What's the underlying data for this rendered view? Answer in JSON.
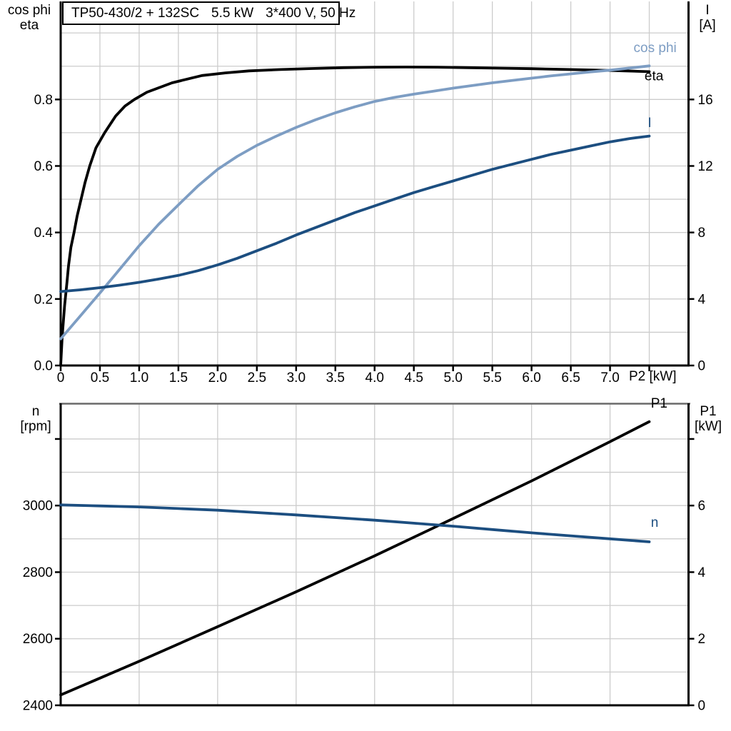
{
  "colors": {
    "black": "#000000",
    "light_blue": "#7d9dc3",
    "dark_blue": "#1c4e80",
    "grid": "#cccccc",
    "top_border_gray": "#6a6a6a"
  },
  "chart_data": [
    {
      "type": "line",
      "title": "TP50-430/2 + 132SC   5.5 kW   3*400 V, 50 Hz",
      "title_parts": [
        "TP50-430/2 + 132SC",
        "5.5 kW",
        "3*400 V, 50 Hz"
      ],
      "x_axis": {
        "label": "P2 [kW]",
        "range": [
          0,
          8
        ],
        "ticks": [
          0,
          0.5,
          1,
          1.5,
          2,
          2.5,
          3,
          3.5,
          4,
          4.5,
          5,
          5.5,
          6,
          6.5,
          7
        ],
        "tick_labels": [
          "0",
          "0.5",
          "1.0",
          "1.5",
          "2.0",
          "2.5",
          "3.0",
          "3.5",
          "4.0",
          "4.5",
          "5.0",
          "5.5",
          "6.0",
          "6.5",
          "7.0"
        ],
        "minor_ticks": [
          7.5
        ]
      },
      "y_left": {
        "label_lines": [
          "cos phi",
          "eta"
        ],
        "range": [
          0,
          1.01
        ],
        "ticks": [
          0,
          0.2,
          0.4,
          0.6,
          0.8
        ],
        "tick_labels": [
          "0.0",
          "0.2",
          "0.4",
          "0.6",
          "0.8"
        ],
        "minor_ticks": []
      },
      "y_right": {
        "label_lines": [
          "I",
          "[A]"
        ],
        "range": [
          0,
          20.2
        ],
        "ticks": [
          0,
          4,
          8,
          12,
          16
        ],
        "tick_labels": [
          "0",
          "4",
          "8",
          "12",
          "16"
        ],
        "minor_ticks": []
      },
      "grid": {
        "v_values": [
          0.5,
          1,
          1.5,
          2,
          2.5,
          3,
          3.5,
          4,
          4.5,
          5,
          5.5,
          6,
          6.5,
          7,
          7.5
        ],
        "h_values": [
          0.1,
          0.2,
          0.3,
          0.4,
          0.5,
          0.6,
          0.7,
          0.8,
          0.9,
          1.0
        ]
      },
      "top_border": false,
      "series": [
        {
          "name": "eta",
          "label": "eta",
          "axis": "left",
          "color": "#000000",
          "label_pos": {
            "x": 7.44,
            "y": 0.858
          },
          "points": [
            [
              0,
              0
            ],
            [
              0.02,
              0.09
            ],
            [
              0.05,
              0.18
            ],
            [
              0.08,
              0.25
            ],
            [
              0.1,
              0.3
            ],
            [
              0.13,
              0.355
            ],
            [
              0.17,
              0.4
            ],
            [
              0.21,
              0.45
            ],
            [
              0.26,
              0.5
            ],
            [
              0.31,
              0.55
            ],
            [
              0.37,
              0.6
            ],
            [
              0.45,
              0.655
            ],
            [
              0.56,
              0.7
            ],
            [
              0.7,
              0.75
            ],
            [
              0.82,
              0.78
            ],
            [
              0.94,
              0.8
            ],
            [
              1.1,
              0.822
            ],
            [
              1.42,
              0.85
            ],
            [
              1.8,
              0.872
            ],
            [
              2.1,
              0.88
            ],
            [
              2.4,
              0.886
            ],
            [
              2.8,
              0.89
            ],
            [
              3.2,
              0.893
            ],
            [
              3.6,
              0.8955
            ],
            [
              4,
              0.897
            ],
            [
              4.4,
              0.8975
            ],
            [
              4.8,
              0.897
            ],
            [
              5.2,
              0.8955
            ],
            [
              5.6,
              0.894
            ],
            [
              6,
              0.8925
            ],
            [
              6.4,
              0.8905
            ],
            [
              6.8,
              0.8885
            ],
            [
              7.2,
              0.886
            ],
            [
              7.5,
              0.8835
            ]
          ]
        },
        {
          "name": "cos phi",
          "label": "cos phi",
          "axis": "left",
          "color": "#7d9dc3",
          "label_pos": {
            "x": 7.3,
            "y": 0.942
          },
          "points": [
            [
              0,
              0.08
            ],
            [
              0.25,
              0.149
            ],
            [
              0.5,
              0.218
            ],
            [
              0.75,
              0.289
            ],
            [
              1,
              0.36
            ],
            [
              1.25,
              0.425
            ],
            [
              1.5,
              0.483
            ],
            [
              1.75,
              0.54
            ],
            [
              2,
              0.59
            ],
            [
              2.25,
              0.629
            ],
            [
              2.5,
              0.662
            ],
            [
              2.75,
              0.69
            ],
            [
              3,
              0.716
            ],
            [
              3.25,
              0.739
            ],
            [
              3.5,
              0.76
            ],
            [
              3.75,
              0.778
            ],
            [
              4,
              0.794
            ],
            [
              4.25,
              0.806
            ],
            [
              4.5,
              0.816
            ],
            [
              4.75,
              0.825
            ],
            [
              5,
              0.834
            ],
            [
              5.25,
              0.842
            ],
            [
              5.5,
              0.85
            ],
            [
              5.75,
              0.857
            ],
            [
              6,
              0.864
            ],
            [
              6.25,
              0.871
            ],
            [
              6.5,
              0.877
            ],
            [
              6.75,
              0.883
            ],
            [
              7,
              0.888
            ],
            [
              7.25,
              0.8945
            ],
            [
              7.5,
              0.901
            ]
          ]
        },
        {
          "name": "I",
          "label": "I",
          "axis": "right",
          "color": "#1c4e80",
          "label_pos": {
            "x": 7.48,
            "y": 14.35
          },
          "points": [
            [
              0,
              4.45
            ],
            [
              0.25,
              4.55
            ],
            [
              0.5,
              4.68
            ],
            [
              0.75,
              4.83
            ],
            [
              1,
              5
            ],
            [
              1.25,
              5.2
            ],
            [
              1.5,
              5.42
            ],
            [
              1.75,
              5.7
            ],
            [
              2,
              6.05
            ],
            [
              2.25,
              6.45
            ],
            [
              2.5,
              6.9
            ],
            [
              2.75,
              7.35
            ],
            [
              3,
              7.85
            ],
            [
              3.25,
              8.3
            ],
            [
              3.5,
              8.75
            ],
            [
              3.75,
              9.2
            ],
            [
              4,
              9.6
            ],
            [
              4.25,
              10
            ],
            [
              4.5,
              10.4
            ],
            [
              4.75,
              10.75
            ],
            [
              5,
              11.1
            ],
            [
              5.25,
              11.45
            ],
            [
              5.5,
              11.8
            ],
            [
              5.75,
              12.1
            ],
            [
              6,
              12.4
            ],
            [
              6.25,
              12.7
            ],
            [
              6.5,
              12.95
            ],
            [
              6.75,
              13.2
            ],
            [
              7,
              13.45
            ],
            [
              7.25,
              13.65
            ],
            [
              7.5,
              13.8
            ]
          ]
        }
      ]
    },
    {
      "type": "line",
      "title": "",
      "title_parts": [],
      "x_axis": {
        "label": "",
        "range": [
          0,
          8
        ],
        "ticks": [],
        "tick_labels": [],
        "minor_ticks": []
      },
      "y_left": {
        "label_lines": [
          "n",
          "[rpm]"
        ],
        "range": [
          2400,
          3306
        ],
        "ticks": [
          2400,
          2600,
          2800,
          3000
        ],
        "tick_labels": [
          "2400",
          "2600",
          "2800",
          "3000"
        ],
        "minor_ticks": [
          3200
        ]
      },
      "y_right": {
        "label_lines": [
          "P1",
          "[kW]"
        ],
        "range": [
          0,
          9.06
        ],
        "ticks": [
          0,
          2,
          4,
          6
        ],
        "tick_labels": [
          "0",
          "2",
          "4",
          "6"
        ],
        "minor_ticks": [
          8
        ]
      },
      "grid": {
        "v_values": [
          1,
          2,
          3,
          4,
          5,
          6,
          7
        ],
        "h_values": [
          2500,
          2600,
          2700,
          2800,
          2900,
          3000,
          3100,
          3200
        ]
      },
      "top_border": true,
      "series": [
        {
          "name": "P1",
          "label": "P1",
          "axis": "right",
          "color": "#000000",
          "label_pos": {
            "x": 7.52,
            "y": 8.94
          },
          "points": [
            [
              0,
              0.31
            ],
            [
              1,
              1.32
            ],
            [
              2,
              2.36
            ],
            [
              3,
              3.41
            ],
            [
              4,
              4.49
            ],
            [
              4.84,
              5.43
            ],
            [
              6,
              6.74
            ],
            [
              7,
              7.92
            ],
            [
              7.5,
              8.52
            ]
          ]
        },
        {
          "name": "n",
          "label": "n",
          "axis": "left",
          "color": "#1c4e80",
          "label_pos": {
            "x": 7.52,
            "y": 2936
          },
          "points": [
            [
              0,
              3002
            ],
            [
              0.5,
              2999
            ],
            [
              1,
              2996
            ],
            [
              1.5,
              2991
            ],
            [
              2,
              2986
            ],
            [
              2.5,
              2979
            ],
            [
              3,
              2972
            ],
            [
              3.5,
              2964
            ],
            [
              4,
              2956
            ],
            [
              4.5,
              2947
            ],
            [
              5,
              2938
            ],
            [
              5.5,
              2928
            ],
            [
              6,
              2918
            ],
            [
              6.5,
              2909
            ],
            [
              7,
              2900
            ],
            [
              7.5,
              2891
            ]
          ]
        }
      ]
    }
  ]
}
